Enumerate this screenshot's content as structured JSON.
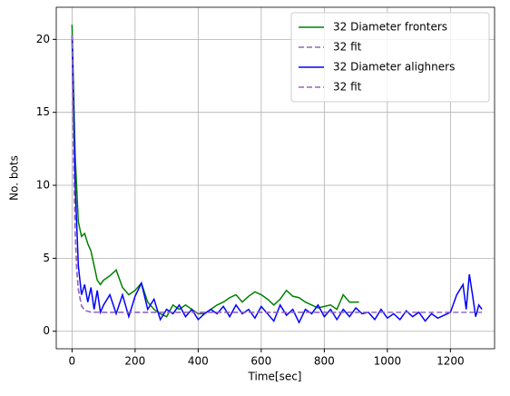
{
  "chart_data": {
    "type": "line",
    "xlabel": "Time[sec]",
    "ylabel": "No. bots",
    "xlim": [
      -50,
      1340
    ],
    "ylim": [
      -1.2,
      22.2
    ],
    "xticks": [
      0,
      200,
      400,
      600,
      800,
      1000,
      1200
    ],
    "yticks": [
      0,
      5,
      10,
      15,
      20
    ],
    "grid": true,
    "legend": "upper right",
    "series": [
      {
        "name": "32 Diameter fronters",
        "color": "#008000",
        "linestyle": "solid",
        "x": [
          0,
          10,
          20,
          30,
          40,
          50,
          60,
          70,
          80,
          90,
          100,
          120,
          140,
          160,
          180,
          200,
          220,
          240,
          260,
          280,
          300,
          320,
          340,
          360,
          380,
          400,
          420,
          440,
          460,
          480,
          500,
          520,
          540,
          560,
          580,
          600,
          620,
          640,
          660,
          680,
          700,
          720,
          740,
          760,
          780,
          800,
          820,
          840,
          860,
          880,
          900,
          910
        ],
        "values": [
          21,
          12,
          7.5,
          6.5,
          6.7,
          6,
          5.5,
          4.5,
          3.5,
          3.2,
          3.5,
          3.8,
          4.2,
          3,
          2.5,
          2.8,
          3.3,
          2,
          1.5,
          1.2,
          1,
          1.8,
          1.5,
          1.8,
          1.5,
          1.2,
          1.2,
          1.5,
          1.8,
          2,
          2.3,
          2.5,
          2,
          2.4,
          2.7,
          2.5,
          2.2,
          1.8,
          2.2,
          2.8,
          2.4,
          2.3,
          2,
          1.8,
          1.6,
          1.7,
          1.8,
          1.5,
          2.5,
          2,
          2,
          2
        ]
      },
      {
        "name": "32 fit",
        "color": "#9467bd",
        "linestyle": "dashed",
        "x": [
          0,
          5,
          10,
          15,
          20,
          30,
          40,
          60,
          100,
          910
        ],
        "values": [
          20.3,
          11.5,
          6.74,
          4.2,
          2.86,
          1.75,
          1.43,
          1.31,
          1.3,
          1.3
        ]
      },
      {
        "name": "32 Diameter alighners",
        "color": "#0000ff",
        "linestyle": "solid",
        "x": [
          0,
          10,
          20,
          30,
          40,
          50,
          60,
          70,
          80,
          90,
          100,
          120,
          140,
          160,
          180,
          200,
          220,
          240,
          260,
          280,
          300,
          320,
          340,
          360,
          380,
          400,
          420,
          440,
          460,
          480,
          500,
          520,
          540,
          560,
          580,
          600,
          620,
          640,
          660,
          680,
          700,
          720,
          740,
          760,
          780,
          800,
          820,
          840,
          860,
          880,
          900,
          920,
          940,
          960,
          980,
          1000,
          1020,
          1040,
          1060,
          1080,
          1100,
          1120,
          1140,
          1160,
          1180,
          1200,
          1220,
          1240,
          1250,
          1260,
          1270,
          1280,
          1290,
          1300
        ],
        "values": [
          20.3,
          10,
          4.5,
          2.5,
          3.2,
          2,
          3,
          1.5,
          2.8,
          1.3,
          1.8,
          2.5,
          1.2,
          2.5,
          1,
          2.4,
          3.3,
          1.5,
          2.2,
          0.8,
          1.5,
          1.2,
          1.8,
          1,
          1.5,
          0.8,
          1.2,
          1.5,
          1.2,
          1.7,
          1,
          1.8,
          1.2,
          1.5,
          0.9,
          1.7,
          1.2,
          0.7,
          1.8,
          1.1,
          1.5,
          0.6,
          1.5,
          1.2,
          1.8,
          1,
          1.5,
          0.8,
          1.5,
          1,
          1.6,
          1.2,
          1.3,
          0.8,
          1.5,
          0.9,
          1.2,
          0.8,
          1.4,
          1,
          1.3,
          0.7,
          1.2,
          0.9,
          1.1,
          1.3,
          2.5,
          3.2,
          1.5,
          3.9,
          2.5,
          1,
          1.8,
          1.5
        ]
      },
      {
        "name": "32 fit",
        "color": "#9467bd",
        "linestyle": "dashed",
        "x": [
          0,
          5,
          10,
          15,
          20,
          30,
          40,
          60,
          100,
          1300
        ],
        "values": [
          20.3,
          11.5,
          6.74,
          4.2,
          2.86,
          1.75,
          1.43,
          1.31,
          1.3,
          1.3
        ]
      }
    ]
  }
}
